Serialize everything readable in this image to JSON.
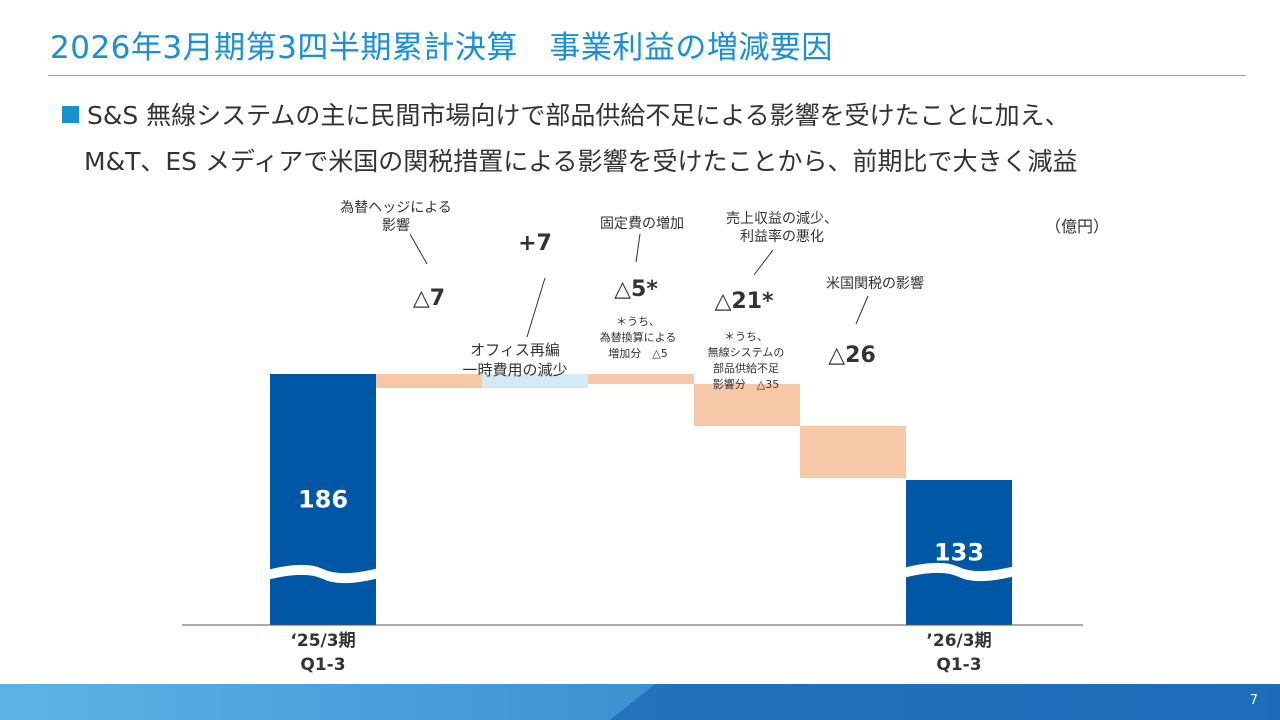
{
  "header": {
    "title": "2026年3月期第3四半期累計決算　事業利益の増減要因",
    "bullet_line1": "S&S 無線システムの主に民間市場向けで部品供給不足による影響を受けたことに加え、",
    "bullet_line2": "M&T、ES メディアで米国の関税措置による影響を受けたことから、前期比で大きく減益"
  },
  "unit_label": "（億円）",
  "page_number": "7",
  "colors": {
    "title": "#1a8fd1",
    "total_bar": "#0057a6",
    "decrease_bar": "#f7c8a8",
    "increase_bar": "#d4eaf4"
  },
  "chart_data": {
    "type": "bar",
    "subtype": "waterfall",
    "ylim": [
      0,
      200
    ],
    "axis_break": true,
    "steps": [
      {
        "kind": "total",
        "value": 186,
        "label": "186",
        "category": [
          "‘25/3期",
          "Q1-3"
        ]
      },
      {
        "kind": "decrease",
        "value": -7,
        "label": "△7",
        "annotation": [
          "為替ヘッジによる",
          "影響"
        ]
      },
      {
        "kind": "increase",
        "value": 7,
        "label": "+7",
        "annotation": [
          "オフィス再編",
          "一時費用の減少"
        ]
      },
      {
        "kind": "decrease",
        "value": -5,
        "label": "△5*",
        "annotation": [
          "固定費の増加"
        ],
        "note": [
          "＊うち、",
          "為替換算による",
          "増加分　△5"
        ]
      },
      {
        "kind": "decrease",
        "value": -21,
        "label": "△21*",
        "annotation": [
          "売上収益の減少、",
          "利益率の悪化"
        ],
        "note": [
          "＊うち、",
          "無線システムの",
          "部品供給不足",
          "影響分　△35"
        ]
      },
      {
        "kind": "decrease",
        "value": -26,
        "label": "△26",
        "annotation": [
          "米国関税の影響"
        ]
      },
      {
        "kind": "total",
        "value": 133,
        "label": "133",
        "category": [
          "’26/3期",
          "Q1-3"
        ]
      }
    ]
  }
}
